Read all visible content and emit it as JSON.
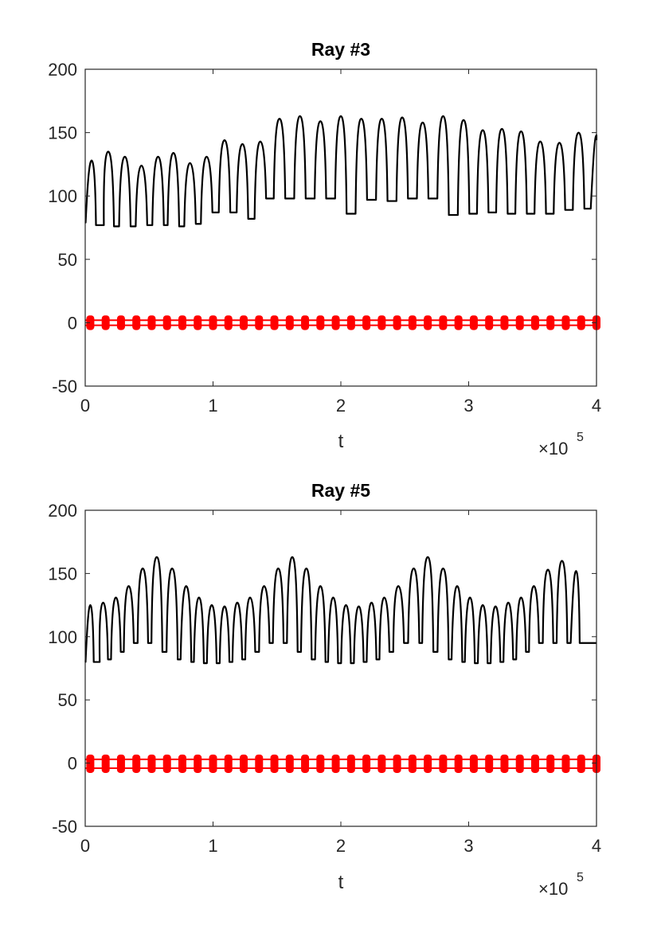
{
  "chart_data": [
    {
      "type": "line",
      "title": "Ray #3",
      "xlabel": "t",
      "ylabel": "",
      "x_exponent_label": "×10",
      "x_exponent_power": "5",
      "xlim": [
        0,
        4
      ],
      "ylim": [
        -50,
        200
      ],
      "x_unit_scale": 100000,
      "xticks": [
        "0",
        "1",
        "2",
        "3",
        "4"
      ],
      "yticks": [
        "-50",
        "0",
        "50",
        "100",
        "150",
        "200"
      ],
      "grid": false,
      "colors": {
        "black_series": "#000000",
        "red_series": "#ff0000"
      },
      "series": [
        {
          "color": "#000000",
          "style": "pulse",
          "peaks": [
            [
              0.05,
              128
            ],
            [
              0.18,
              135
            ],
            [
              0.31,
              131
            ],
            [
              0.44,
              124
            ],
            [
              0.57,
              131
            ],
            [
              0.69,
              134
            ],
            [
              0.82,
              126
            ],
            [
              0.95,
              131
            ],
            [
              1.09,
              144
            ],
            [
              1.23,
              141
            ],
            [
              1.37,
              143
            ],
            [
              1.52,
              161
            ],
            [
              1.68,
              163
            ],
            [
              1.84,
              159
            ],
            [
              2.0,
              163
            ],
            [
              2.16,
              161
            ],
            [
              2.32,
              161
            ],
            [
              2.48,
              162
            ],
            [
              2.64,
              158
            ],
            [
              2.8,
              163
            ],
            [
              2.96,
              160
            ],
            [
              3.11,
              152
            ],
            [
              3.26,
              153
            ],
            [
              3.41,
              151
            ],
            [
              3.56,
              143
            ],
            [
              3.71,
              142
            ],
            [
              3.86,
              150
            ],
            [
              4.0,
              148
            ]
          ],
          "troughs": [
            79,
            77,
            76,
            76,
            77,
            77,
            76,
            78,
            87,
            87,
            82,
            98,
            98,
            98,
            98,
            86,
            97,
            96,
            98,
            98,
            85,
            86,
            87,
            86,
            86,
            86,
            89,
            90
          ]
        },
        {
          "color": "#ff0000",
          "style": "thick-markers",
          "upper": 2,
          "lower": -2,
          "marker_spacing": 0.06
        }
      ]
    },
    {
      "type": "line",
      "title": "Ray #5",
      "xlabel": "t",
      "ylabel": "",
      "x_exponent_label": "×10",
      "x_exponent_power": "5",
      "xlim": [
        0,
        4
      ],
      "ylim": [
        -50,
        200
      ],
      "x_unit_scale": 100000,
      "xticks": [
        "0",
        "1",
        "2",
        "3",
        "4"
      ],
      "yticks": [
        "-50",
        "0",
        "50",
        "100",
        "150",
        "200"
      ],
      "grid": false,
      "colors": {
        "black_series": "#000000",
        "red_series": "#ff0000"
      },
      "series": [
        {
          "color": "#000000",
          "style": "pulse",
          "peaks": [
            [
              0.04,
              125
            ],
            [
              0.14,
              127
            ],
            [
              0.24,
              131
            ],
            [
              0.34,
              140
            ],
            [
              0.45,
              154
            ],
            [
              0.56,
              163
            ],
            [
              0.68,
              154
            ],
            [
              0.79,
              140
            ],
            [
              0.89,
              131
            ],
            [
              0.99,
              125
            ],
            [
              1.09,
              124
            ],
            [
              1.19,
              127
            ],
            [
              1.29,
              131
            ],
            [
              1.4,
              140
            ],
            [
              1.51,
              154
            ],
            [
              1.62,
              163
            ],
            [
              1.73,
              154
            ],
            [
              1.84,
              140
            ],
            [
              1.94,
              131
            ],
            [
              2.04,
              125
            ],
            [
              2.14,
              124
            ],
            [
              2.24,
              127
            ],
            [
              2.34,
              131
            ],
            [
              2.45,
              140
            ],
            [
              2.57,
              154
            ],
            [
              2.68,
              163
            ],
            [
              2.8,
              154
            ],
            [
              2.91,
              140
            ],
            [
              3.01,
              131
            ],
            [
              3.11,
              125
            ],
            [
              3.21,
              124
            ],
            [
              3.31,
              127
            ],
            [
              3.41,
              131
            ],
            [
              3.51,
              140
            ],
            [
              3.62,
              153
            ],
            [
              3.73,
              160
            ],
            [
              3.84,
              152
            ]
          ],
          "troughs": [
            80,
            80,
            82,
            88,
            95,
            95,
            88,
            82,
            80,
            79,
            79,
            80,
            82,
            88,
            95,
            95,
            88,
            82,
            80,
            79,
            79,
            80,
            82,
            88,
            95,
            95,
            88,
            82,
            80,
            79,
            79,
            80,
            82,
            88,
            95,
            95,
            95
          ]
        },
        {
          "color": "#ff0000",
          "style": "thick-markers",
          "upper": 3,
          "lower": -4,
          "marker_spacing": 0.06
        }
      ]
    }
  ]
}
